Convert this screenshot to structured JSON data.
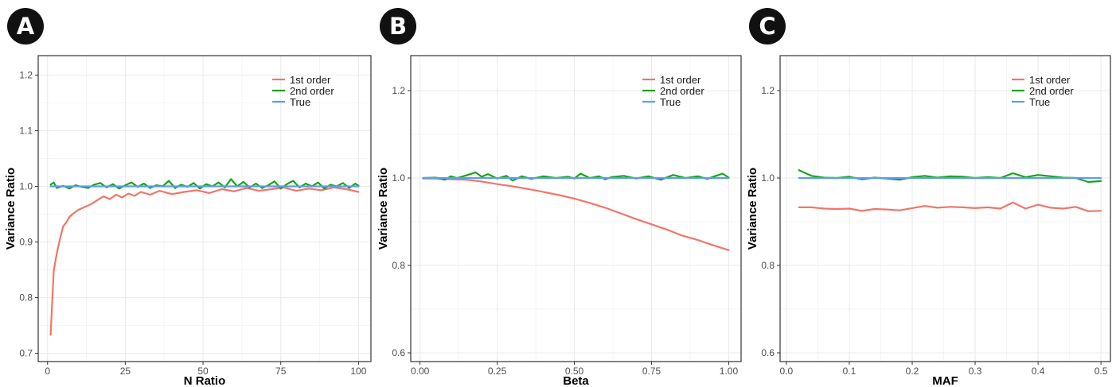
{
  "panels": [
    {
      "letter": "A"
    },
    {
      "letter": "B"
    },
    {
      "letter": "C"
    }
  ],
  "colors": {
    "first_order": "#f07668",
    "second_order": "#1aa31a",
    "true": "#5b9df0",
    "grid": "#ebebeb",
    "frame": "#333333",
    "badge": "#111111",
    "text": "#222222"
  },
  "chart_data": [
    {
      "type": "line",
      "panel": "A",
      "xlabel": "N Ratio",
      "ylabel": "Variance Ratio",
      "xlim": [
        -3,
        104
      ],
      "ylim": [
        0.685,
        1.235
      ],
      "xticks": [
        0,
        25,
        50,
        75,
        100
      ],
      "xtick_labels": [
        "0",
        "25",
        "50",
        "75",
        "100"
      ],
      "yticks": [
        0.7,
        0.8,
        0.9,
        1.0,
        1.1,
        1.2
      ],
      "ytick_labels": [
        "0.7",
        "0.8",
        "0.9",
        "1.0",
        "1.1",
        "1.2"
      ],
      "grid": true,
      "legend_position": "top-right",
      "series": [
        {
          "name": "1st order",
          "key": "first_order",
          "x": [
            1,
            2,
            3,
            4,
            5,
            6,
            7,
            8,
            10,
            12,
            14,
            16,
            18,
            20,
            22,
            24,
            26,
            28,
            30,
            33,
            36,
            40,
            44,
            48,
            52,
            56,
            60,
            64,
            68,
            72,
            76,
            80,
            84,
            88,
            92,
            96,
            100
          ],
          "y": [
            0.733,
            0.848,
            0.88,
            0.905,
            0.928,
            0.935,
            0.945,
            0.95,
            0.958,
            0.963,
            0.968,
            0.975,
            0.982,
            0.977,
            0.985,
            0.98,
            0.987,
            0.983,
            0.99,
            0.985,
            0.992,
            0.986,
            0.99,
            0.993,
            0.988,
            0.995,
            0.991,
            0.997,
            0.992,
            0.995,
            0.998,
            0.992,
            0.996,
            0.993,
            0.998,
            0.995,
            0.99
          ]
        },
        {
          "name": "2nd order",
          "key": "second_order",
          "x": [
            1,
            2,
            3,
            5,
            7,
            9,
            11,
            13,
            15,
            17,
            19,
            21,
            23,
            25,
            27,
            29,
            31,
            33,
            35,
            37,
            39,
            41,
            43,
            45,
            47,
            49,
            51,
            53,
            55,
            57,
            59,
            61,
            63,
            65,
            67,
            69,
            71,
            73,
            75,
            77,
            79,
            81,
            83,
            85,
            87,
            89,
            91,
            93,
            95,
            97,
            99,
            100
          ],
          "y": [
            1.003,
            1.007,
            0.997,
            1.001,
            0.996,
            1.002,
            0.999,
            0.997,
            1.003,
            1.006,
            0.998,
            1.004,
            0.996,
            1.002,
            1.007,
            0.999,
            1.005,
            0.997,
            1.002,
            1.0,
            1.01,
            0.997,
            1.003,
            0.999,
            1.006,
            0.996,
            1.004,
            1.0,
            1.007,
            0.998,
            1.013,
            1.0,
            1.008,
            0.998,
            1.005,
            0.997,
            1.002,
            1.009,
            0.996,
            1.004,
            1.01,
            0.998,
            1.005,
            1.0,
            1.007,
            0.996,
            1.003,
            1.0,
            1.006,
            0.997,
            1.005,
            1.001
          ]
        },
        {
          "name": "True",
          "key": "true",
          "x": [
            1,
            100
          ],
          "y": [
            1.0,
            1.0
          ]
        }
      ]
    },
    {
      "type": "line",
      "panel": "B",
      "xlabel": "Beta",
      "ylabel": "Variance Ratio",
      "xlim": [
        -0.03,
        1.04
      ],
      "ylim": [
        0.58,
        1.28
      ],
      "xticks": [
        0.0,
        0.25,
        0.5,
        0.75,
        1.0
      ],
      "xtick_labels": [
        "0.00",
        "0.25",
        "0.50",
        "0.75",
        "1.00"
      ],
      "yticks": [
        0.6,
        0.8,
        1.0,
        1.2
      ],
      "ytick_labels": [
        "0.6",
        "0.8",
        "1.0",
        "1.2"
      ],
      "grid": true,
      "legend_position": "top-right",
      "series": [
        {
          "name": "1st order",
          "key": "first_order",
          "x": [
            0.01,
            0.05,
            0.1,
            0.15,
            0.2,
            0.25,
            0.3,
            0.35,
            0.4,
            0.45,
            0.5,
            0.55,
            0.6,
            0.65,
            0.7,
            0.75,
            0.8,
            0.85,
            0.9,
            0.95,
            1.0
          ],
          "y": [
            0.999,
            0.999,
            0.997,
            0.996,
            0.992,
            0.986,
            0.981,
            0.975,
            0.968,
            0.961,
            0.953,
            0.943,
            0.932,
            0.919,
            0.906,
            0.894,
            0.882,
            0.868,
            0.858,
            0.846,
            0.835
          ]
        },
        {
          "name": "2nd order",
          "key": "second_order",
          "x": [
            0.01,
            0.05,
            0.08,
            0.1,
            0.12,
            0.15,
            0.18,
            0.2,
            0.22,
            0.25,
            0.28,
            0.3,
            0.33,
            0.36,
            0.4,
            0.44,
            0.48,
            0.5,
            0.52,
            0.55,
            0.58,
            0.6,
            0.62,
            0.66,
            0.7,
            0.74,
            0.78,
            0.82,
            0.86,
            0.9,
            0.93,
            0.95,
            0.98,
            1.0
          ],
          "y": [
            1.0,
            1.001,
            0.996,
            1.004,
            1.0,
            1.006,
            1.013,
            1.003,
            1.009,
            0.999,
            1.005,
            0.994,
            1.004,
            0.998,
            1.004,
            1.0,
            1.003,
            0.999,
            1.01,
            1.0,
            1.004,
            0.997,
            1.002,
            1.005,
            0.999,
            1.004,
            0.996,
            1.007,
            1.0,
            1.004,
            0.998,
            1.003,
            1.01,
            1.001
          ]
        },
        {
          "name": "True",
          "key": "true",
          "x": [
            0.01,
            1.0
          ],
          "y": [
            1.0,
            1.0
          ]
        }
      ]
    },
    {
      "type": "line",
      "panel": "C",
      "xlabel": "MAF",
      "ylabel": "Variance Ratio",
      "xlim": [
        -0.01,
        0.515
      ],
      "ylim": [
        0.58,
        1.28
      ],
      "xticks": [
        0.0,
        0.1,
        0.2,
        0.3,
        0.4,
        0.5
      ],
      "xtick_labels": [
        "0.0",
        "0.1",
        "0.2",
        "0.3",
        "0.4",
        "0.5"
      ],
      "yticks": [
        0.6,
        0.8,
        1.0,
        1.2
      ],
      "ytick_labels": [
        "0.6",
        "0.8",
        "1.0",
        "1.2"
      ],
      "grid": true,
      "legend_position": "top-right",
      "series": [
        {
          "name": "1st order",
          "key": "first_order",
          "x": [
            0.02,
            0.04,
            0.06,
            0.08,
            0.1,
            0.12,
            0.14,
            0.16,
            0.18,
            0.2,
            0.22,
            0.24,
            0.26,
            0.28,
            0.3,
            0.32,
            0.34,
            0.36,
            0.38,
            0.4,
            0.42,
            0.44,
            0.46,
            0.48,
            0.5
          ],
          "y": [
            0.933,
            0.933,
            0.93,
            0.929,
            0.93,
            0.925,
            0.929,
            0.928,
            0.926,
            0.931,
            0.936,
            0.932,
            0.934,
            0.933,
            0.931,
            0.933,
            0.93,
            0.944,
            0.93,
            0.939,
            0.932,
            0.93,
            0.934,
            0.924,
            0.925
          ]
        },
        {
          "name": "2nd order",
          "key": "second_order",
          "x": [
            0.02,
            0.04,
            0.06,
            0.08,
            0.1,
            0.12,
            0.14,
            0.16,
            0.18,
            0.2,
            0.22,
            0.24,
            0.26,
            0.28,
            0.3,
            0.32,
            0.34,
            0.36,
            0.38,
            0.4,
            0.42,
            0.44,
            0.46,
            0.48,
            0.5
          ],
          "y": [
            1.018,
            1.005,
            1.001,
            1.0,
            1.003,
            0.997,
            1.001,
            0.999,
            0.996,
            1.002,
            1.005,
            1.001,
            1.004,
            1.003,
            1.0,
            1.002,
            1.0,
            1.011,
            1.002,
            1.007,
            1.004,
            1.001,
            1.0,
            0.991,
            0.993
          ]
        },
        {
          "name": "True",
          "key": "true",
          "x": [
            0.02,
            0.5
          ],
          "y": [
            1.0,
            1.0
          ]
        }
      ]
    }
  ]
}
